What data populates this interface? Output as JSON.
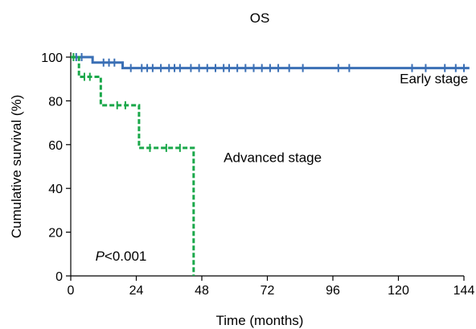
{
  "chart_data": {
    "type": "line",
    "title": "OS",
    "xlabel": "Time (months)",
    "ylabel": "Cumulative survival (%)",
    "xlim": [
      0,
      144
    ],
    "ylim": [
      0,
      100
    ],
    "xticks": [
      0,
      24,
      48,
      72,
      96,
      120,
      144
    ],
    "yticks": [
      0,
      20,
      40,
      60,
      80,
      100
    ],
    "grid": false,
    "series": [
      {
        "name": "Early stage",
        "color": "#3a6fb5",
        "style": "solid",
        "x": [
          0,
          1,
          8,
          8,
          19,
          19,
          146
        ],
        "y": [
          100,
          100,
          100,
          97.5,
          97.5,
          95,
          95
        ],
        "censor_x": [
          2,
          4,
          12,
          14,
          16,
          22,
          26,
          28,
          30,
          33,
          36,
          38,
          40,
          44,
          47,
          50,
          53,
          56,
          58,
          61,
          64,
          67,
          70,
          73,
          76,
          80,
          85,
          98,
          102,
          125,
          130,
          137,
          141,
          144
        ],
        "censor_y": [
          100,
          100,
          97.5,
          97.5,
          97.5,
          95,
          95,
          95,
          95,
          95,
          95,
          95,
          95,
          95,
          95,
          95,
          95,
          95,
          95,
          95,
          95,
          95,
          95,
          95,
          95,
          95,
          95,
          95,
          95,
          95,
          95,
          95,
          95,
          95
        ]
      },
      {
        "name": "Advanced stage",
        "color": "#1aa84a",
        "style": "dashed",
        "x": [
          0,
          3,
          3,
          11,
          11,
          25,
          25,
          45,
          45
        ],
        "y": [
          100,
          100,
          91,
          91,
          78,
          78,
          58.5,
          58.5,
          0
        ],
        "censor_x": [
          1,
          5,
          7,
          17,
          20,
          29,
          35,
          40
        ],
        "censor_y": [
          100,
          91,
          91,
          78,
          78,
          58.5,
          58.5,
          58.5
        ]
      }
    ],
    "annotations": [
      {
        "text": "Early stage",
        "x": 133,
        "y": 88
      },
      {
        "text": "Advanced stage",
        "x": 56,
        "y": 52
      },
      {
        "text_italic": "P",
        "text": "<0.001",
        "x": 9,
        "y": 7
      }
    ]
  }
}
